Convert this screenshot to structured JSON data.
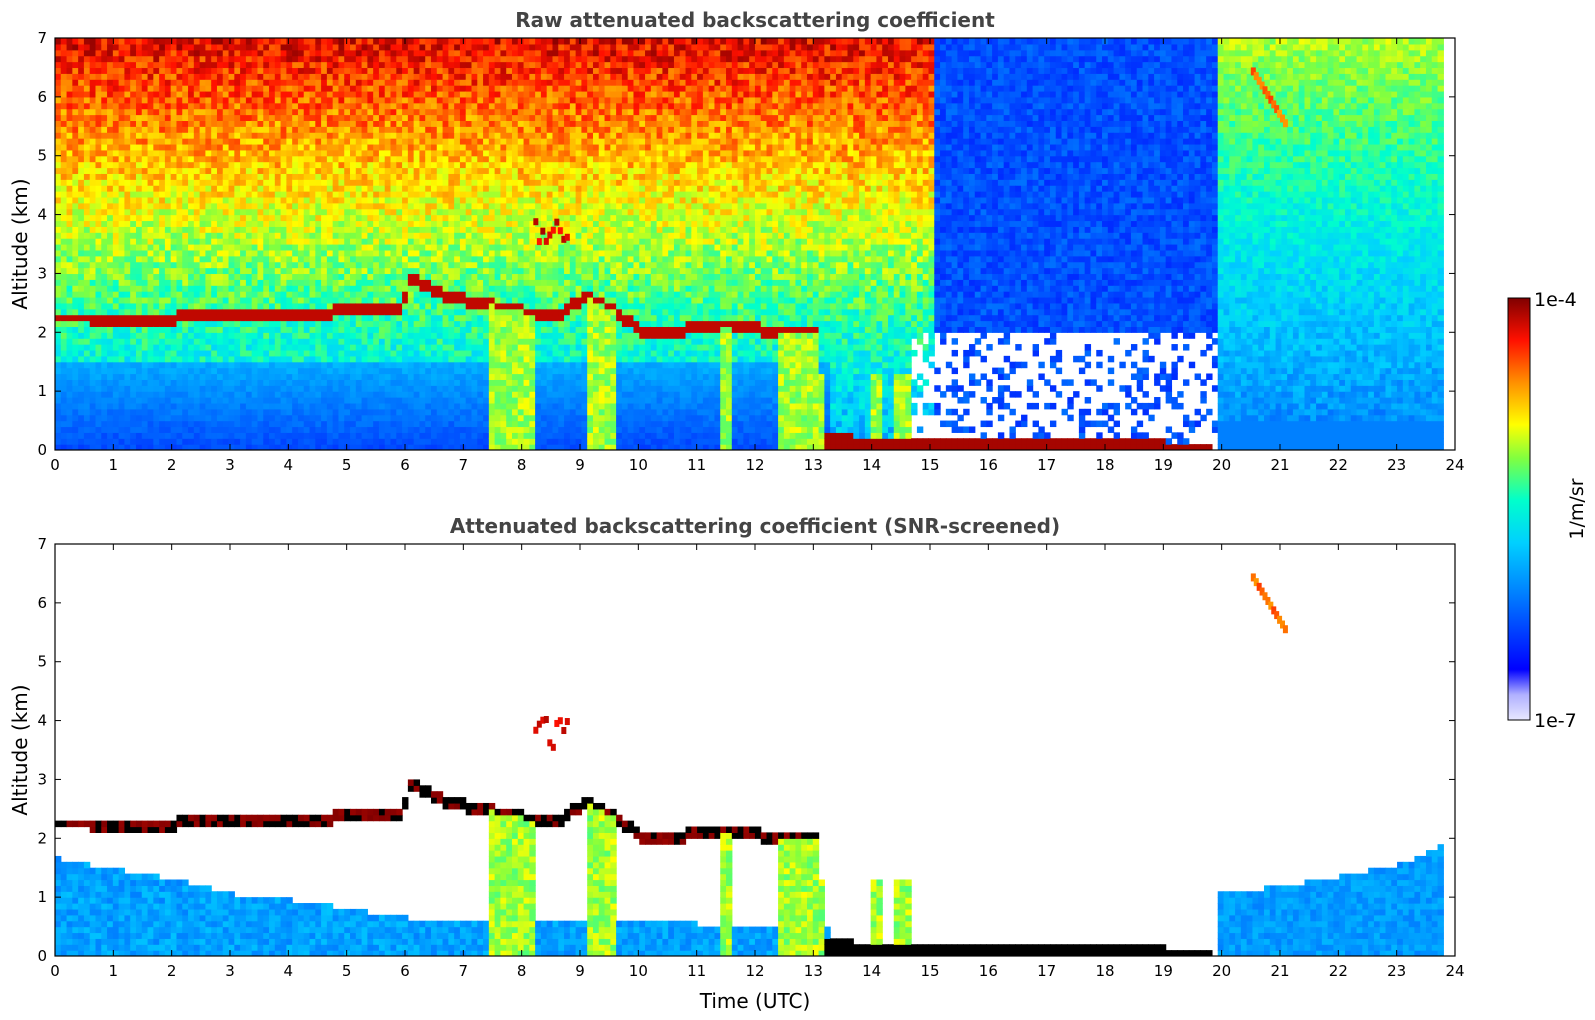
{
  "chart_data": [
    {
      "type": "heatmap",
      "title": "Raw attenuated backscattering coefficient",
      "xlabel": "",
      "ylabel": "Altitude (km)",
      "xlim": [
        0,
        24
      ],
      "ylim": [
        0,
        7
      ],
      "xticks": [
        "0",
        "1",
        "2",
        "3",
        "4",
        "5",
        "6",
        "7",
        "8",
        "9",
        "10",
        "11",
        "12",
        "13",
        "14",
        "15",
        "16",
        "17",
        "18",
        "19",
        "20",
        "21",
        "22",
        "23",
        "24"
      ],
      "yticks": [
        "0",
        "1",
        "2",
        "3",
        "4",
        "5",
        "6",
        "7"
      ],
      "data_extent_x": [
        0,
        23.8
      ],
      "features": {
        "cloud_layer_top_km": [
          [
            0,
            2.2
          ],
          [
            0.5,
            2.2
          ],
          [
            1,
            2.1
          ],
          [
            1.5,
            2.15
          ],
          [
            2,
            2.2
          ],
          [
            3,
            2.25
          ],
          [
            4,
            2.2
          ],
          [
            4.5,
            2.25
          ],
          [
            5,
            2.35
          ],
          [
            5.5,
            2.4
          ],
          [
            5.9,
            2.3
          ],
          [
            6.0,
            2.85
          ],
          [
            6.2,
            2.8
          ],
          [
            6.6,
            2.6
          ],
          [
            7.0,
            2.5
          ],
          [
            7.5,
            2.4
          ],
          [
            8.0,
            2.3
          ],
          [
            8.6,
            2.25
          ],
          [
            9.0,
            2.55
          ],
          [
            9.5,
            2.35
          ],
          [
            10.0,
            2.0
          ],
          [
            10.5,
            1.95
          ],
          [
            11.0,
            2.05
          ],
          [
            11.5,
            2.05
          ],
          [
            12.0,
            2.0
          ],
          [
            12.5,
            1.95
          ],
          [
            13.0,
            2.0
          ]
        ],
        "surface_layer_km": [
          [
            13.1,
            0.18
          ],
          [
            14.0,
            0.13
          ],
          [
            15.0,
            0.1
          ],
          [
            16.0,
            0.08
          ],
          [
            17.0,
            0.07
          ],
          [
            18.0,
            0.06
          ],
          [
            19.0,
            0.05
          ],
          [
            19.8,
            0.04
          ]
        ]
      }
    },
    {
      "type": "heatmap",
      "title": "Attenuated backscattering coefficient (SNR-screened)",
      "xlabel": "Time (UTC)",
      "ylabel": "Altitude (km)",
      "xlim": [
        0,
        24
      ],
      "ylim": [
        0,
        7
      ],
      "xticks": [
        "0",
        "1",
        "2",
        "3",
        "4",
        "5",
        "6",
        "7",
        "8",
        "9",
        "10",
        "11",
        "12",
        "13",
        "14",
        "15",
        "16",
        "17",
        "18",
        "19",
        "20",
        "21",
        "22",
        "23",
        "24"
      ],
      "yticks": [
        "0",
        "1",
        "2",
        "3",
        "4",
        "5",
        "6",
        "7"
      ],
      "data_extent_x": [
        0,
        23.8
      ],
      "features": {
        "cloud_layer_top_km": [
          [
            0,
            2.2
          ],
          [
            0.5,
            2.2
          ],
          [
            1,
            2.1
          ],
          [
            1.5,
            2.15
          ],
          [
            2,
            2.2
          ],
          [
            3,
            2.25
          ],
          [
            4,
            2.2
          ],
          [
            4.5,
            2.25
          ],
          [
            5,
            2.35
          ],
          [
            5.5,
            2.4
          ],
          [
            5.9,
            2.3
          ],
          [
            6.0,
            2.85
          ],
          [
            6.2,
            2.8
          ],
          [
            6.6,
            2.6
          ],
          [
            7.0,
            2.5
          ],
          [
            7.5,
            2.4
          ],
          [
            8.0,
            2.3
          ],
          [
            8.6,
            2.25
          ],
          [
            9.0,
            2.55
          ],
          [
            9.5,
            2.35
          ],
          [
            10.0,
            2.0
          ],
          [
            10.5,
            1.95
          ],
          [
            11.0,
            2.05
          ],
          [
            11.5,
            2.05
          ],
          [
            12.0,
            2.0
          ],
          [
            12.5,
            1.95
          ],
          [
            13.0,
            2.0
          ]
        ],
        "surface_layer_km": [
          [
            13.1,
            0.18
          ],
          [
            14.0,
            0.13
          ],
          [
            15.0,
            0.1
          ],
          [
            16.0,
            0.08
          ],
          [
            17.0,
            0.07
          ],
          [
            18.0,
            0.06
          ],
          [
            19.0,
            0.05
          ],
          [
            19.8,
            0.04
          ]
        ],
        "boundary_layer_top_km": [
          [
            0,
            1.6
          ],
          [
            2,
            1.25
          ],
          [
            3,
            1.0
          ],
          [
            4,
            0.9
          ],
          [
            5,
            0.75
          ],
          [
            6,
            0.6
          ],
          [
            7,
            0.55
          ],
          [
            9,
            0.5
          ],
          [
            11,
            0.5
          ],
          [
            13,
            0.45
          ]
        ],
        "evening_layer_top_km": [
          [
            19.9,
            1.0
          ],
          [
            21,
            1.15
          ],
          [
            22,
            1.3
          ],
          [
            23,
            1.5
          ],
          [
            23.8,
            1.85
          ]
        ]
      }
    }
  ],
  "colorbar": {
    "min_label": "1e-7",
    "max_label": "1e-4",
    "label": "1/m/sr",
    "colormap": [
      "#e8e8ff",
      "#0000ff",
      "#00aaff",
      "#00ffd0",
      "#7fff3f",
      "#ffff00",
      "#ff8000",
      "#ff0000",
      "#800000"
    ]
  }
}
